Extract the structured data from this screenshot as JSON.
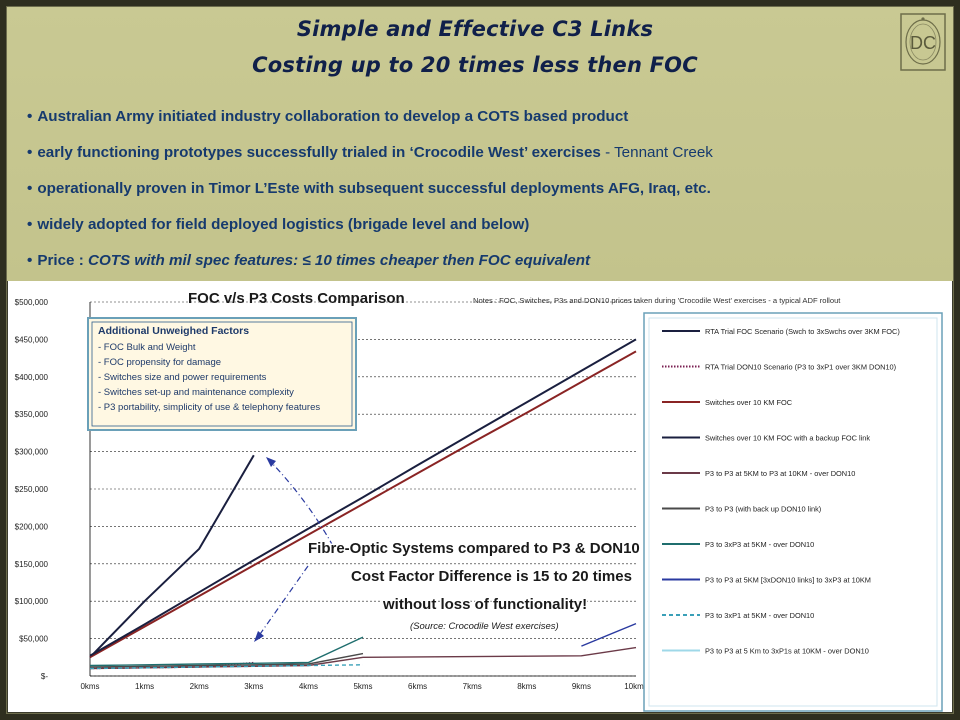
{
  "slide": {
    "title_line1": "Simple and Effective C3 Links",
    "title_line2": "Costing up to 20 times less then FOC",
    "logo_text": "DC",
    "bullets": [
      {
        "text": "Australian Army initiated industry collaboration to develop a COTS based product",
        "suffix": ""
      },
      {
        "text": "early functioning prototypes successfully trialed in ‘Crocodile West’ exercises",
        "suffix": " - Tennant Creek"
      },
      {
        "text": "operationally proven in Timor L’Este with subsequent successful deployments AFG, Iraq, etc.",
        "suffix": ""
      },
      {
        "text": "widely adopted for field deployed logistics (brigade level and below)",
        "suffix": ""
      },
      {
        "prefix": "Price : ",
        "text": "COTS with mil spec features: ≤ 10 times cheaper then FOC equivalent"
      }
    ],
    "bullet_symbol": "•"
  },
  "chart_data": {
    "type": "line",
    "title": "FOC v/s P3 Costs Comparison",
    "notes": "Notes : FOC, Switches, P3s and DON10 prices taken during 'Crocodile West' exercises - a typical ADF rollout",
    "x": [
      "0kms",
      "1kms",
      "2kms",
      "3kms",
      "4kms",
      "5kms",
      "6kms",
      "7kms",
      "8kms",
      "9kms",
      "10kms"
    ],
    "y_ticks": [
      "$-",
      "$50,000",
      "$100,000",
      "$150,000",
      "$200,000",
      "$250,000",
      "$300,000",
      "$350,000",
      "$400,000",
      "$450,000",
      "$500,000"
    ],
    "ylim": [
      0,
      500000
    ],
    "grid": true,
    "legend_position": "right",
    "series": [
      {
        "name": "RTA Trial FOC Scenario (Swch to 3xSwchs over 3KM FOC)",
        "color": "#1a1f3f",
        "style": "solid",
        "values": [
          25000,
          100000,
          170000,
          295000,
          null,
          null,
          null,
          null,
          null,
          null,
          null
        ]
      },
      {
        "name": "RTA Trial DON10 Scenario (P3 to 3xP1 over 3KM DON10)",
        "color": "#7a1f52",
        "style": "dotted",
        "values": [
          10000,
          11000,
          12000,
          18000,
          null,
          null,
          null,
          null,
          null,
          null,
          null
        ]
      },
      {
        "name": "Switches over 10 KM FOC",
        "color": "#8a2424",
        "style": "solid",
        "values": [
          25000,
          66000,
          107000,
          148000,
          189000,
          230000,
          271000,
          312000,
          352000,
          393000,
          434000
        ]
      },
      {
        "name": "Switches over 10 KM FOC with a backup FOC link",
        "color": "#1a1f3f",
        "style": "solid",
        "values": [
          27000,
          69000,
          112000,
          155000,
          197000,
          239000,
          282000,
          324000,
          366000,
          408000,
          450000
        ]
      },
      {
        "name": "P3 to P3 at 5KM to P3 at 10KM - over DON10",
        "color": "#6b3a48",
        "style": "solid",
        "values": [
          10000,
          11000,
          12000,
          13000,
          14000,
          25000,
          25500,
          26000,
          26500,
          27000,
          38000
        ]
      },
      {
        "name": "P3 to P3 (with back up DON10 link)",
        "color": "#4a4a4a",
        "style": "solid",
        "values": [
          12000,
          13000,
          14000,
          15000,
          16000,
          30000,
          null,
          null,
          null,
          null,
          null
        ]
      },
      {
        "name": "P3 to 3xP3 at 5KM - over DON10",
        "color": "#1f6e6e",
        "style": "solid",
        "values": [
          14000,
          15000,
          16000,
          17000,
          18000,
          52000,
          null,
          null,
          null,
          null,
          null
        ]
      },
      {
        "name": "P3 to P3 at 5KM [3xDON10 links] to 3xP3 at 10KM",
        "color": "#2a3aa0",
        "style": "solid",
        "values": [
          null,
          null,
          null,
          null,
          null,
          null,
          null,
          null,
          null,
          40000,
          70000
        ]
      },
      {
        "name": "P3 to 3xP1 at 5KM - over DON10",
        "color": "#3aa0b8",
        "style": "dashed",
        "values": [
          10000,
          11000,
          12000,
          13000,
          14000,
          15000,
          null,
          null,
          null,
          null,
          null
        ]
      },
      {
        "name": "P3 to P3 at 5 Km to 3xP1s at 10KM - over DON10",
        "color": "#9fd8e8",
        "style": "solid",
        "values": [
          null,
          null,
          null,
          null,
          null,
          null,
          null,
          null,
          null,
          null,
          null
        ]
      }
    ],
    "factors_box": {
      "title": "Additional Unweighed Factors",
      "items": [
        "- FOC Bulk and Weight",
        "- FOC propensity for damage",
        "- Switches size and power requirements",
        "- Switches set-up and maintenance complexity",
        "- P3 portability, simplicity of use & telephony features"
      ]
    },
    "annotation": {
      "line1": "Fibre-Optic Systems compared to P3 & DON10",
      "line2": "Cost Factor Difference is 15 to 20 times",
      "line3": "without loss of functionality!",
      "source": "(Source: Crocodile West exercises)"
    }
  }
}
